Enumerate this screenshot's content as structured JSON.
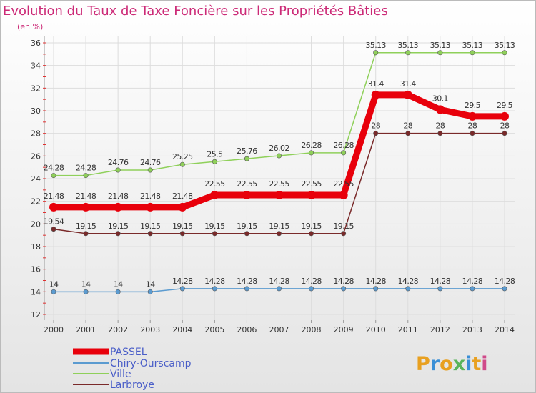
{
  "chart_data": {
    "type": "line",
    "title": "Evolution du Taux de Taxe Foncière sur les Propriétés Bâties",
    "subtitle": "(en %)",
    "x": [
      "2000",
      "2001",
      "2002",
      "2003",
      "2004",
      "2005",
      "2006",
      "2007",
      "2008",
      "2009",
      "2010",
      "2011",
      "2012",
      "2013",
      "2014"
    ],
    "yticks": [
      12,
      14,
      16,
      18,
      20,
      22,
      24,
      26,
      28,
      30,
      32,
      34,
      36
    ],
    "ylim": [
      12,
      36
    ],
    "grid": true,
    "legend_placement": "bottom-left",
    "series": [
      {
        "name": "PASSEL",
        "color": "#e8000b",
        "values": [
          21.48,
          21.48,
          21.48,
          21.48,
          21.48,
          22.55,
          22.55,
          22.55,
          22.55,
          22.55,
          31.4,
          31.4,
          30.1,
          29.5,
          29.5
        ],
        "labels": [
          "21.48",
          "21.48",
          "21.48",
          "21.48",
          "21.48",
          "22.55",
          "22.55",
          "22.55",
          "22.55",
          "22.55",
          "31.4",
          "31.4",
          "30.1",
          "29.5",
          "29.5"
        ]
      },
      {
        "name": "Chiry-Ourscamp",
        "color": "#5b9bd0",
        "values": [
          14,
          14,
          14,
          14,
          14.28,
          14.28,
          14.28,
          14.28,
          14.28,
          14.28,
          14.28,
          14.28,
          14.28,
          14.28,
          14.28
        ],
        "labels": [
          "14",
          "14",
          "14",
          "14",
          "14.28",
          "14.28",
          "14.28",
          "14.28",
          "14.28",
          "14.28",
          "14.28",
          "14.28",
          "14.28",
          "14.28",
          "14.28"
        ]
      },
      {
        "name": "Ville",
        "color": "#8fd05a",
        "values": [
          24.28,
          24.28,
          24.76,
          24.76,
          25.25,
          25.5,
          25.76,
          26.02,
          26.28,
          26.28,
          35.13,
          35.13,
          35.13,
          35.13,
          35.13
        ],
        "labels": [
          "24.28",
          "24.28",
          "24.76",
          "24.76",
          "25.25",
          "25.5",
          "25.76",
          "26.02",
          "26.28",
          "26.28",
          "35.13",
          "35.13",
          "35.13",
          "35.13",
          "35.13"
        ]
      },
      {
        "name": "Larbroye",
        "color": "#7a2a2a",
        "values": [
          19.54,
          19.15,
          19.15,
          19.15,
          19.15,
          19.15,
          19.15,
          19.15,
          19.15,
          19.15,
          28,
          28,
          28,
          28,
          28
        ],
        "labels": [
          "19.54",
          "19.15",
          "19.15",
          "19.15",
          "19.15",
          "19.15",
          "19.15",
          "19.15",
          "19.15",
          "19.15",
          "28",
          "28",
          "28",
          "28",
          "28"
        ]
      }
    ]
  },
  "branding": {
    "logo_text": "Proxiti",
    "logo_colors": [
      "#e8a020",
      "#3a8fd6",
      "#e8a020",
      "#5ab45a",
      "#3a8fd6",
      "#e8a020",
      "#d04a8a"
    ]
  }
}
